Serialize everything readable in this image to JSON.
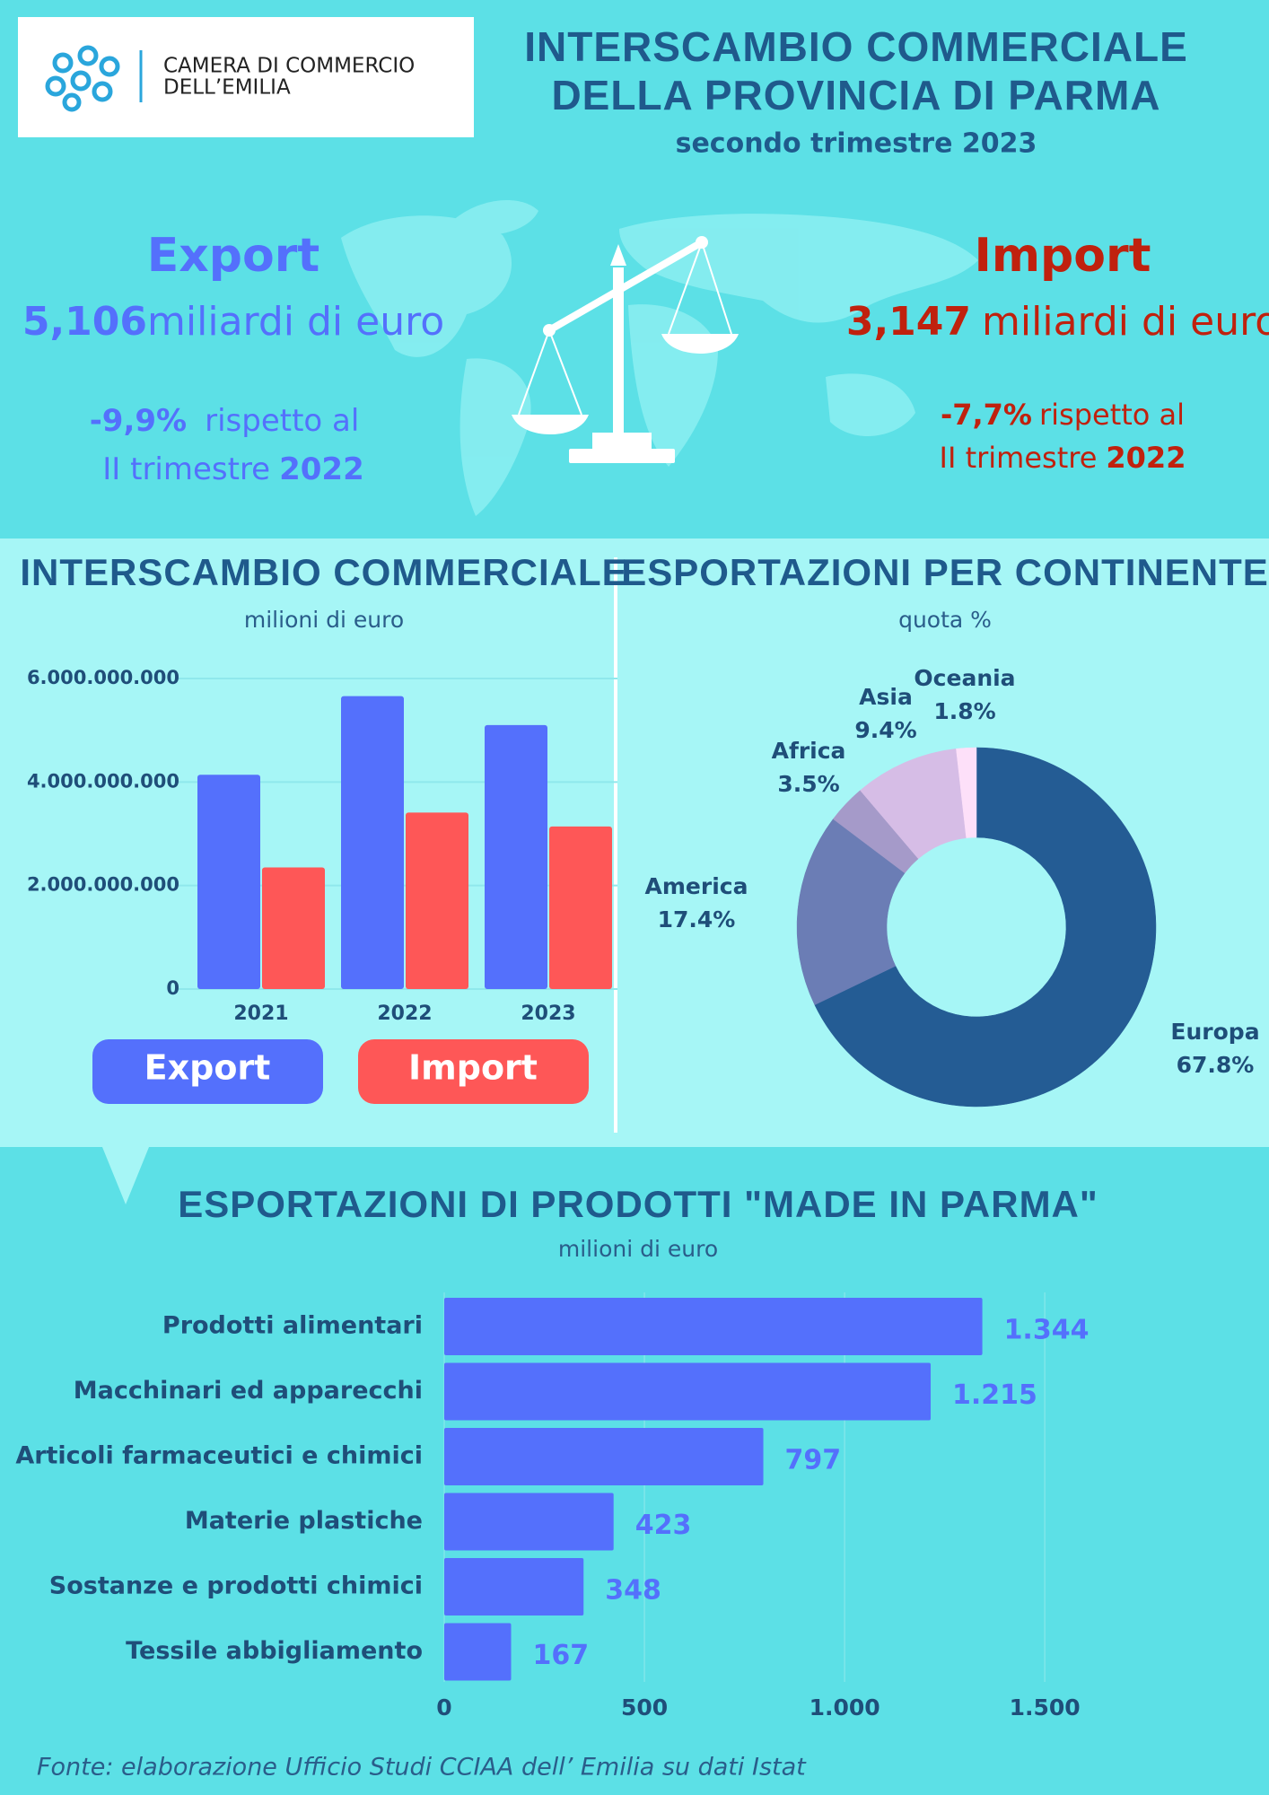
{
  "header": {
    "logo_line1": "CAMERA DI COMMERCIO",
    "logo_line2": "DELL’EMILIA",
    "title_line1": "INTERSCAMBIO COMMERCIALE",
    "title_line2": "DELLA PROVINCIA DI PARMA",
    "subtitle": "secondo trimestre 2023"
  },
  "export": {
    "label": "Export",
    "value": "5,106",
    "unit": "miliardi di euro",
    "change": "-9,9%",
    "change_text": "rispetto al",
    "period": "II trimestre",
    "year": "2022"
  },
  "import": {
    "label": "Import",
    "value": "3,147",
    "unit": "miliardi di euro",
    "change": "-7,7%",
    "change_text": "rispetto al",
    "period": "II trimestre",
    "year": "2022"
  },
  "chart_data": [
    {
      "type": "bar",
      "orientation": "vertical",
      "title": "INTERSCAMBIO COMMERCIALE",
      "subtitle": "milioni di euro",
      "categories": [
        "2021",
        "2022",
        "2023"
      ],
      "series": [
        {
          "name": "Export",
          "color": "#5470fc",
          "values": [
            4140000000,
            5660000000,
            5100000000
          ]
        },
        {
          "name": "Import",
          "color": "#fe5757",
          "values": [
            2350000000,
            3410000000,
            3140000000
          ]
        }
      ],
      "ylim": [
        0,
        6000000000
      ],
      "yticks": [
        0,
        {
          "value": 2000000000,
          "label": "2.000.000.000"
        },
        {
          "value": 4000000000,
          "label": "4.000.000.000"
        },
        {
          "value": 6000000000,
          "label": "6.000.000.000"
        }
      ],
      "grid": true
    },
    {
      "type": "pie",
      "donut": true,
      "title": "ESPORTAZIONI PER CONTINENTE",
      "subtitle": "quota %",
      "categories": [
        "Europa",
        "America",
        "Africa",
        "Asia",
        "Oceania"
      ],
      "values": [
        67.8,
        17.4,
        3.5,
        9.4,
        1.8
      ],
      "value_labels": [
        "67.8%",
        "17.4%",
        "3.5%",
        "9.4%",
        "1.8%"
      ],
      "colors": [
        "#245c94",
        "#6b7db5",
        "#a59ac9",
        "#d6bde6",
        "#fde0f9"
      ]
    },
    {
      "type": "bar",
      "orientation": "horizontal",
      "title": "ESPORTAZIONI DI PRODOTTI \"MADE IN PARMA\"",
      "subtitle": "milioni di euro",
      "categories": [
        "Prodotti alimentari",
        "Macchinari ed apparecchi",
        "Articoli farmaceutici e chimici",
        "Materie plastiche",
        "Sostanze e prodotti chimici",
        "Tessile abbigliamento"
      ],
      "values": [
        1344,
        1215,
        797,
        423,
        348,
        167
      ],
      "value_labels": [
        "1.344",
        "1.215",
        "797",
        "423",
        "348",
        "167"
      ],
      "color": "#5470fc",
      "xlim": [
        0,
        1800
      ],
      "xticks": [
        0,
        500,
        {
          "value": 1000,
          "label": "1.000"
        },
        {
          "value": 1500,
          "label": "1.500"
        }
      ],
      "grid": true
    }
  ],
  "footer": {
    "source": "Fonte: elaborazione Ufficio Studi CCIAA dell’ Emilia su dati Istat"
  }
}
